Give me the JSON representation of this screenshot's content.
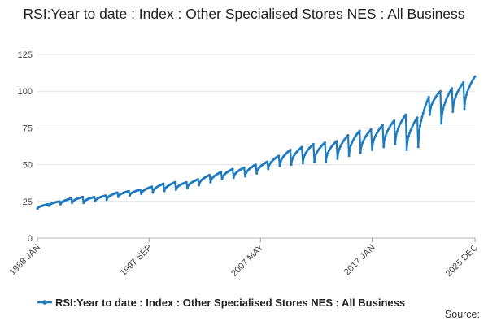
{
  "chart_data": {
    "type": "line",
    "title": "RSI:Year to date : Index : Other Specialised Stores NES : All Business",
    "xlabel": "",
    "ylabel": "",
    "x_range": [
      "1988 JAN",
      "2025 DEC"
    ],
    "ylim": [
      0,
      125
    ],
    "yticks": [
      0,
      25,
      50,
      75,
      100,
      125
    ],
    "xticks": [
      {
        "label": "1988 JAN",
        "year": 1988,
        "month": 1
      },
      {
        "label": "1997 SEP",
        "year": 1997,
        "month": 9
      },
      {
        "label": "2007 MAY",
        "year": 2007,
        "month": 5
      },
      {
        "label": "2017 JAN",
        "year": 2017,
        "month": 1
      },
      {
        "label": "2025 DEC",
        "year": 2025,
        "month": 12
      }
    ],
    "grid": "horizontal",
    "legend_position": "bottom",
    "series": [
      {
        "name": "RSI:Year to date : Index : Other Specialised Stores NES : All Business",
        "color": "#1f7bbf",
        "annual_points": [
          {
            "year": 1988,
            "jan": 20,
            "dec": 23
          },
          {
            "year": 1989,
            "jan": 22,
            "dec": 25
          },
          {
            "year": 1990,
            "jan": 23,
            "dec": 27
          },
          {
            "year": 1991,
            "jan": 24,
            "dec": 28
          },
          {
            "year": 1992,
            "jan": 24,
            "dec": 28
          },
          {
            "year": 1993,
            "jan": 25,
            "dec": 29
          },
          {
            "year": 1994,
            "jan": 26,
            "dec": 31
          },
          {
            "year": 1995,
            "jan": 28,
            "dec": 32
          },
          {
            "year": 1996,
            "jan": 29,
            "dec": 33
          },
          {
            "year": 1997,
            "jan": 30,
            "dec": 35
          },
          {
            "year": 1998,
            "jan": 31,
            "dec": 37
          },
          {
            "year": 1999,
            "jan": 32,
            "dec": 38
          },
          {
            "year": 2000,
            "jan": 33,
            "dec": 38
          },
          {
            "year": 2001,
            "jan": 34,
            "dec": 40
          },
          {
            "year": 2002,
            "jan": 36,
            "dec": 43
          },
          {
            "year": 2003,
            "jan": 38,
            "dec": 45
          },
          {
            "year": 2004,
            "jan": 40,
            "dec": 47
          },
          {
            "year": 2005,
            "jan": 41,
            "dec": 48
          },
          {
            "year": 2006,
            "jan": 42,
            "dec": 50
          },
          {
            "year": 2007,
            "jan": 44,
            "dec": 52
          },
          {
            "year": 2008,
            "jan": 47,
            "dec": 56
          },
          {
            "year": 2009,
            "jan": 49,
            "dec": 60
          },
          {
            "year": 2010,
            "jan": 50,
            "dec": 62
          },
          {
            "year": 2011,
            "jan": 51,
            "dec": 64
          },
          {
            "year": 2012,
            "jan": 52,
            "dec": 65
          },
          {
            "year": 2013,
            "jan": 52,
            "dec": 66
          },
          {
            "year": 2014,
            "jan": 54,
            "dec": 70
          },
          {
            "year": 2015,
            "jan": 56,
            "dec": 73
          },
          {
            "year": 2016,
            "jan": 58,
            "dec": 74
          },
          {
            "year": 2017,
            "jan": 60,
            "dec": 77
          },
          {
            "year": 2018,
            "jan": 62,
            "dec": 80
          },
          {
            "year": 2019,
            "jan": 64,
            "dec": 84
          },
          {
            "year": 2020,
            "jan": 60,
            "dec": 82
          },
          {
            "year": 2021,
            "jan": 62,
            "dec": 96
          },
          {
            "year": 2022,
            "jan": 84,
            "dec": 100
          },
          {
            "year": 2023,
            "jan": 78,
            "dec": 102
          },
          {
            "year": 2024,
            "jan": 86,
            "dec": 106
          },
          {
            "year": 2025,
            "jan": 88,
            "dec": 110
          }
        ]
      }
    ],
    "source_label": "Source:"
  }
}
